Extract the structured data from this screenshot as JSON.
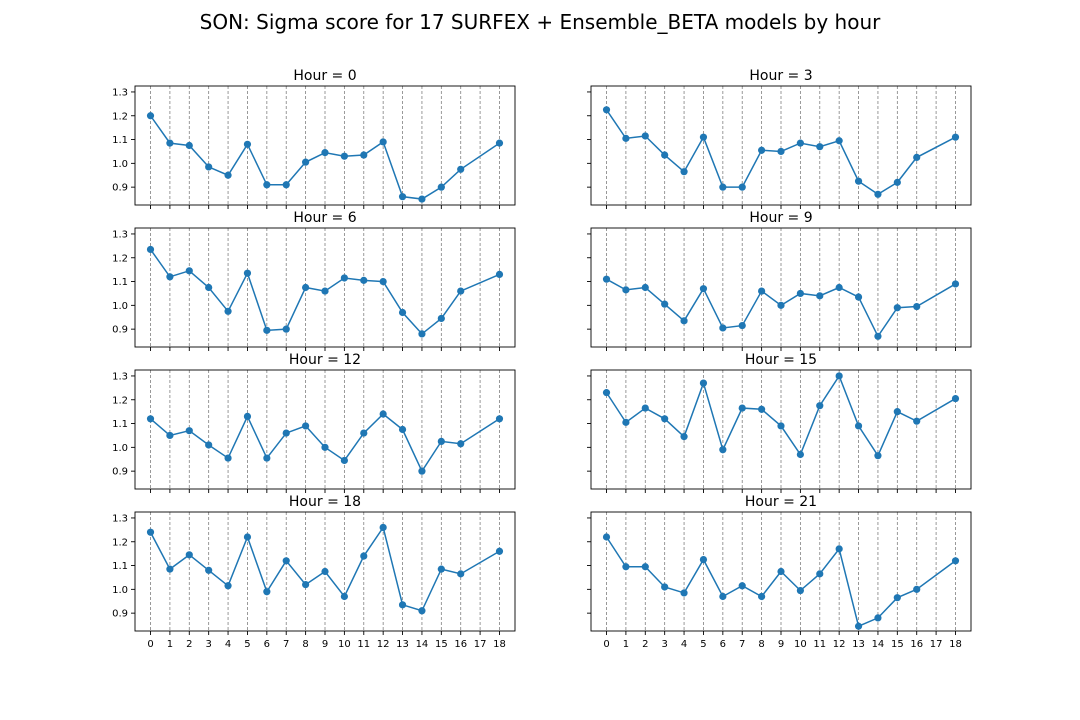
{
  "figure": {
    "title": "SON: Sigma score for 17 SURFEX + Ensemble_BETA models by hour"
  },
  "colors": {
    "series": "#1f77b4",
    "grid": "#808080",
    "axis": "#000000"
  },
  "chart_data": [
    {
      "type": "line",
      "title": "Hour = 0",
      "x": [
        0,
        1,
        2,
        3,
        4,
        5,
        6,
        7,
        8,
        9,
        10,
        11,
        12,
        13,
        14,
        15,
        16,
        18
      ],
      "x_ticks": [
        0,
        1,
        2,
        3,
        4,
        5,
        6,
        7,
        8,
        9,
        10,
        11,
        12,
        13,
        14,
        15,
        16,
        17,
        18
      ],
      "y": [
        1.2,
        1.085,
        1.075,
        0.985,
        0.95,
        1.08,
        0.91,
        0.91,
        1.005,
        1.045,
        1.03,
        1.035,
        1.09,
        0.86,
        0.85,
        0.9,
        0.975,
        1.085
      ],
      "y_ticks": [
        0.9,
        1.0,
        1.1,
        1.2,
        1.3
      ],
      "ylim": [
        0.825,
        1.325
      ],
      "x_grid": true,
      "markers": true
    },
    {
      "type": "line",
      "title": "Hour = 3",
      "x": [
        0,
        1,
        2,
        3,
        4,
        5,
        6,
        7,
        8,
        9,
        10,
        11,
        12,
        13,
        14,
        15,
        16,
        18
      ],
      "x_ticks": [
        0,
        1,
        2,
        3,
        4,
        5,
        6,
        7,
        8,
        9,
        10,
        11,
        12,
        13,
        14,
        15,
        16,
        17,
        18
      ],
      "y": [
        1.225,
        1.105,
        1.115,
        1.035,
        0.965,
        1.11,
        0.9,
        0.9,
        1.055,
        1.05,
        1.085,
        1.07,
        1.095,
        0.925,
        0.87,
        0.92,
        1.025,
        1.11
      ],
      "y_ticks": [
        0.9,
        1.0,
        1.1,
        1.2,
        1.3
      ],
      "ylim": [
        0.825,
        1.325
      ],
      "x_grid": true,
      "markers": true
    },
    {
      "type": "line",
      "title": "Hour = 6",
      "x": [
        0,
        1,
        2,
        3,
        4,
        5,
        6,
        7,
        8,
        9,
        10,
        11,
        12,
        13,
        14,
        15,
        16,
        18
      ],
      "x_ticks": [
        0,
        1,
        2,
        3,
        4,
        5,
        6,
        7,
        8,
        9,
        10,
        11,
        12,
        13,
        14,
        15,
        16,
        17,
        18
      ],
      "y": [
        1.235,
        1.12,
        1.145,
        1.075,
        0.975,
        1.135,
        0.895,
        0.9,
        1.075,
        1.06,
        1.115,
        1.105,
        1.1,
        0.97,
        0.88,
        0.945,
        1.06,
        1.13
      ],
      "y_ticks": [
        0.9,
        1.0,
        1.1,
        1.2,
        1.3
      ],
      "ylim": [
        0.825,
        1.325
      ],
      "x_grid": true,
      "markers": true
    },
    {
      "type": "line",
      "title": "Hour = 9",
      "x": [
        0,
        1,
        2,
        3,
        4,
        5,
        6,
        7,
        8,
        9,
        10,
        11,
        12,
        13,
        14,
        15,
        16,
        18
      ],
      "x_ticks": [
        0,
        1,
        2,
        3,
        4,
        5,
        6,
        7,
        8,
        9,
        10,
        11,
        12,
        13,
        14,
        15,
        16,
        17,
        18
      ],
      "y": [
        1.11,
        1.065,
        1.075,
        1.005,
        0.935,
        1.07,
        0.905,
        0.915,
        1.06,
        1.0,
        1.05,
        1.04,
        1.075,
        1.035,
        0.87,
        0.99,
        0.995,
        1.09
      ],
      "y_ticks": [
        0.9,
        1.0,
        1.1,
        1.2,
        1.3
      ],
      "ylim": [
        0.825,
        1.325
      ],
      "x_grid": true,
      "markers": true
    },
    {
      "type": "line",
      "title": "Hour = 12",
      "x": [
        0,
        1,
        2,
        3,
        4,
        5,
        6,
        7,
        8,
        9,
        10,
        11,
        12,
        13,
        14,
        15,
        16,
        18
      ],
      "x_ticks": [
        0,
        1,
        2,
        3,
        4,
        5,
        6,
        7,
        8,
        9,
        10,
        11,
        12,
        13,
        14,
        15,
        16,
        17,
        18
      ],
      "y": [
        1.12,
        1.05,
        1.07,
        1.01,
        0.955,
        1.13,
        0.955,
        1.06,
        1.09,
        1.0,
        0.945,
        1.06,
        1.14,
        1.075,
        0.9,
        1.025,
        1.015,
        1.12
      ],
      "y_ticks": [
        0.9,
        1.0,
        1.1,
        1.2,
        1.3
      ],
      "ylim": [
        0.825,
        1.325
      ],
      "x_grid": true,
      "markers": true
    },
    {
      "type": "line",
      "title": "Hour = 15",
      "x": [
        0,
        1,
        2,
        3,
        4,
        5,
        6,
        7,
        8,
        9,
        10,
        11,
        12,
        13,
        14,
        15,
        16,
        18
      ],
      "x_ticks": [
        0,
        1,
        2,
        3,
        4,
        5,
        6,
        7,
        8,
        9,
        10,
        11,
        12,
        13,
        14,
        15,
        16,
        17,
        18
      ],
      "y": [
        1.23,
        1.105,
        1.165,
        1.12,
        1.045,
        1.27,
        0.99,
        1.165,
        1.16,
        1.09,
        0.97,
        1.175,
        1.3,
        1.09,
        0.965,
        1.15,
        1.11,
        1.205
      ],
      "y_ticks": [
        0.9,
        1.0,
        1.1,
        1.2,
        1.3
      ],
      "ylim": [
        0.825,
        1.325
      ],
      "x_grid": true,
      "markers": true
    },
    {
      "type": "line",
      "title": "Hour = 18",
      "x": [
        0,
        1,
        2,
        3,
        4,
        5,
        6,
        7,
        8,
        9,
        10,
        11,
        12,
        13,
        14,
        15,
        16,
        18
      ],
      "x_ticks": [
        0,
        1,
        2,
        3,
        4,
        5,
        6,
        7,
        8,
        9,
        10,
        11,
        12,
        13,
        14,
        15,
        16,
        17,
        18
      ],
      "y": [
        1.24,
        1.085,
        1.145,
        1.08,
        1.015,
        1.22,
        0.99,
        1.12,
        1.02,
        1.075,
        0.97,
        1.14,
        1.26,
        0.935,
        0.91,
        1.085,
        1.065,
        1.16
      ],
      "y_ticks": [
        0.9,
        1.0,
        1.1,
        1.2,
        1.3
      ],
      "ylim": [
        0.825,
        1.325
      ],
      "x_grid": true,
      "markers": true
    },
    {
      "type": "line",
      "title": "Hour = 21",
      "x": [
        0,
        1,
        2,
        3,
        4,
        5,
        6,
        7,
        8,
        9,
        10,
        11,
        12,
        13,
        14,
        15,
        16,
        18
      ],
      "x_ticks": [
        0,
        1,
        2,
        3,
        4,
        5,
        6,
        7,
        8,
        9,
        10,
        11,
        12,
        13,
        14,
        15,
        16,
        17,
        18
      ],
      "y": [
        1.22,
        1.095,
        1.095,
        1.01,
        0.985,
        1.125,
        0.97,
        1.015,
        0.97,
        1.075,
        0.995,
        1.065,
        1.17,
        0.845,
        0.88,
        0.965,
        1.0,
        1.12
      ],
      "y_ticks": [
        0.9,
        1.0,
        1.1,
        1.2,
        1.3
      ],
      "ylim": [
        0.825,
        1.325
      ],
      "x_grid": true,
      "markers": true
    }
  ]
}
